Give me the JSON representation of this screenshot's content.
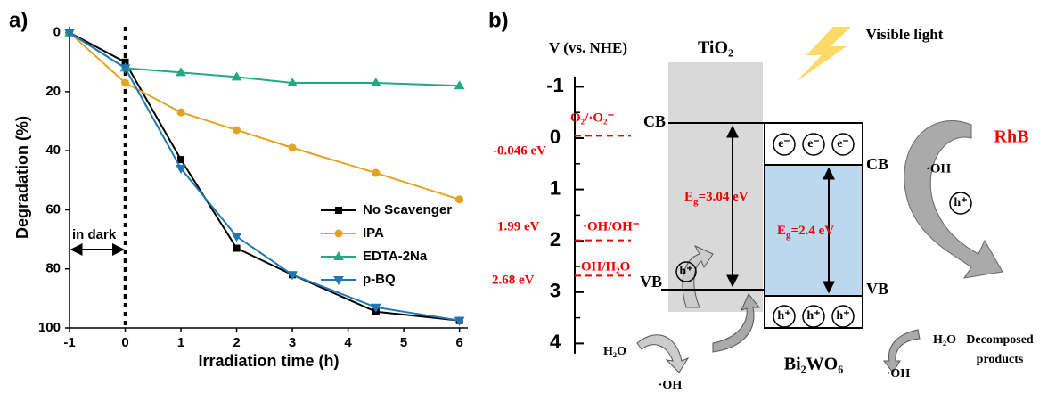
{
  "chart_data": {
    "type": "line",
    "label": "a)",
    "x_label": "Irradiation time (h)",
    "y_label": "Degradation (%)",
    "x": [
      -1,
      0,
      1,
      2,
      3,
      4.5,
      6
    ],
    "series": [
      {
        "name": "No Scavenger",
        "color": "#000000",
        "marker": "square",
        "values": [
          0,
          10,
          43,
          73,
          82,
          94.5,
          97.5
        ]
      },
      {
        "name": "IPA",
        "color": "#e3a320",
        "marker": "circle",
        "values": [
          0,
          17,
          27,
          33,
          39,
          47.5,
          56.5
        ]
      },
      {
        "name": "EDTA-2Na",
        "color": "#22a884",
        "marker": "triangle-up",
        "values": [
          0,
          12,
          13.5,
          15,
          17,
          17,
          18
        ]
      },
      {
        "name": "p-BQ",
        "color": "#1f77b4",
        "marker": "triangle-down",
        "values": [
          0,
          12,
          46,
          69,
          82,
          93,
          97.5
        ]
      }
    ],
    "xlim": [
      -1,
      6.15
    ],
    "xticks": [
      -1,
      0,
      1,
      2,
      3,
      4,
      5,
      6
    ],
    "ylim": [
      -2,
      100
    ],
    "yticks": [
      0,
      20,
      40,
      60,
      80,
      100
    ],
    "y_inverted": true,
    "divider_x": 0,
    "annotation": "in dark",
    "legend": "lower right"
  },
  "diagram": {
    "label": "b)",
    "axis_label": "V (vs. NHE)",
    "potential_ticks": [
      -1,
      0,
      1,
      2,
      3,
      4
    ],
    "potential_lim": [
      -1.2,
      4.2
    ],
    "light": "Visible light",
    "tio2": {
      "name": "TiO₂",
      "cb": "CB",
      "vb": "VB",
      "hole": "h⁺",
      "gap": {
        "main": "E",
        "sub": "g",
        "rest": "=3.04 eV"
      }
    },
    "bi2wo6": {
      "name": "Bi₂WO₆",
      "cb": "CB",
      "vb": "VB",
      "gap": {
        "main": "E",
        "sub": "g",
        "rest": "=2.4 eV"
      },
      "electrons": [
        "e⁻",
        "e⁻",
        "e⁻"
      ],
      "holes": [
        "h⁺",
        "h⁺",
        "h⁺"
      ]
    },
    "potentials": [
      {
        "value": -0.046,
        "label": "-0.046 eV",
        "couple": "O₂/·O₂⁻"
      },
      {
        "value": 1.99,
        "label": "1.99 eV",
        "couple": "·OH/OH⁻"
      },
      {
        "value": 2.68,
        "label": "2.68 eV",
        "couple": "OH/H₂O"
      }
    ],
    "rhb": {
      "name": "RhB",
      "radical": "·OH",
      "hole": "h⁺",
      "product": [
        "Decomposed",
        "products"
      ]
    },
    "tio2_reaction": {
      "reactant": "H₂O",
      "product": "·OH"
    },
    "bi2wo6_reaction": {
      "reactant": "H₂O",
      "product": "·OH"
    }
  }
}
